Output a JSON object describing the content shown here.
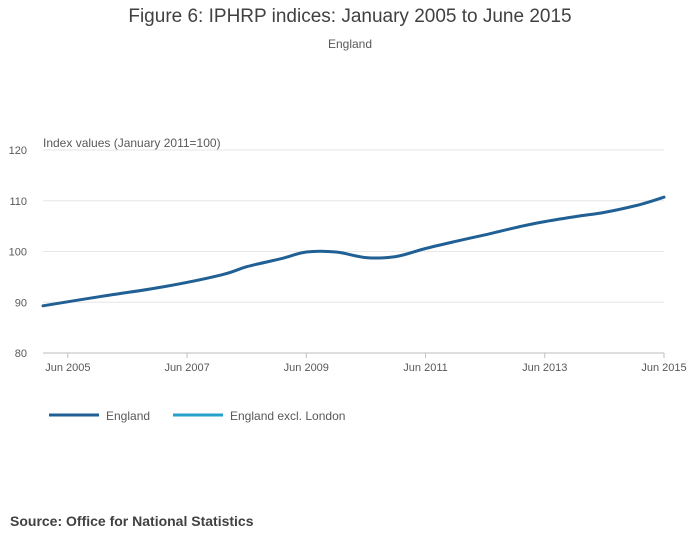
{
  "chart_data": {
    "type": "line",
    "title": "Figure 6: IPHRP indices: January 2005 to June 2015",
    "subtitle": "England",
    "ylabel": "Index values (January 2011=100)",
    "xlabel": "",
    "ylim": [
      80,
      120
    ],
    "yticks": [
      "80",
      "90",
      "100",
      "110",
      "120"
    ],
    "xticks": [
      "Jun 2005",
      "Jun 2007",
      "Jun 2009",
      "Jun 2011",
      "Jun 2013",
      "Jun 2015"
    ],
    "xrange": [
      "Jan 2005",
      "Jun 2015"
    ],
    "grid": true,
    "legend_position": "bottom-left",
    "series": [
      {
        "name": "England",
        "color": "#206095",
        "points": [
          [
            "Jan 2005",
            89.3
          ],
          [
            "Jan 2006",
            91.2
          ],
          [
            "Jan 2007",
            93.0
          ],
          [
            "Jan 2008",
            95.4
          ],
          [
            "Jun 2008",
            97.0
          ],
          [
            "Jan 2009",
            98.6
          ],
          [
            "Jun 2009",
            99.9
          ],
          [
            "Dec 2009",
            99.9
          ],
          [
            "Jun 2010",
            98.8
          ],
          [
            "Dec 2010",
            99.0
          ],
          [
            "Jun 2011",
            100.6
          ],
          [
            "Jan 2012",
            102.2
          ],
          [
            "Jun 2012",
            103.3
          ],
          [
            "Jan 2013",
            104.9
          ],
          [
            "Jun 2013",
            105.9
          ],
          [
            "Jan 2014",
            107.0
          ],
          [
            "Jun 2014",
            107.7
          ],
          [
            "Jan 2015",
            109.2
          ],
          [
            "Jun 2015",
            110.7
          ]
        ]
      },
      {
        "name": "England excl. London",
        "color": "#27a0cc",
        "points": []
      }
    ],
    "source": "Source: Office for National Statistics"
  }
}
